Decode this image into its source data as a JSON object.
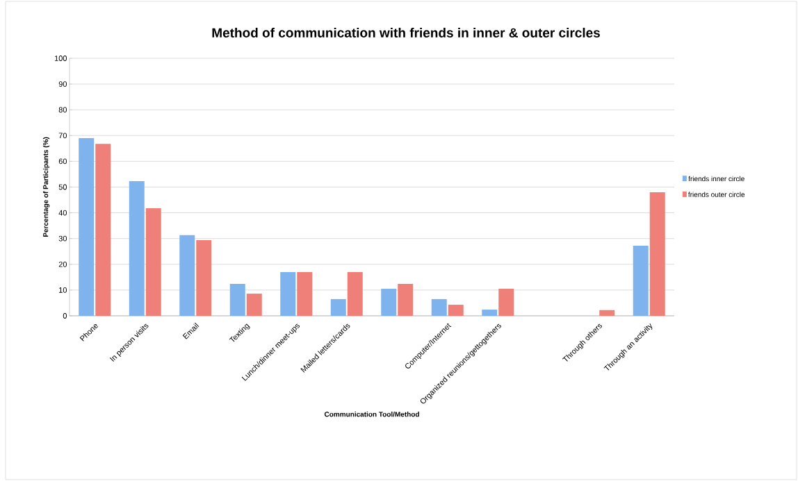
{
  "chart_data": {
    "type": "bar",
    "title": "Method of communication with friends in inner & outer circles",
    "xlabel": "Communication Tool/Method",
    "ylabel": "Percentage of Participants (%)",
    "categories": [
      "Phone",
      "In person visits",
      "Email",
      "Texting",
      "Lunch/dinner meet-ups",
      "Mailed letters/cards",
      null,
      "Computer/Internet",
      "Organized reunions/gettogethers",
      null,
      "Through others",
      "Through an activity"
    ],
    "series": [
      {
        "name": "friends inner circle",
        "color": "#7fb3ee",
        "values": [
          69,
          52.3,
          31.3,
          12.4,
          17,
          6.5,
          10.5,
          6.5,
          2.4,
          0,
          0,
          27.2
        ]
      },
      {
        "name": "friends outer circle",
        "color": "#ee8079",
        "values": [
          66.8,
          41.8,
          29.4,
          8.6,
          17,
          17,
          12.4,
          4.3,
          10.5,
          0,
          2.2,
          48
        ]
      }
    ],
    "ylim": [
      0,
      100
    ],
    "yticks": [
      0,
      10,
      20,
      30,
      40,
      50,
      60,
      70,
      80,
      90,
      100
    ],
    "grid": "y",
    "legend": "right"
  }
}
